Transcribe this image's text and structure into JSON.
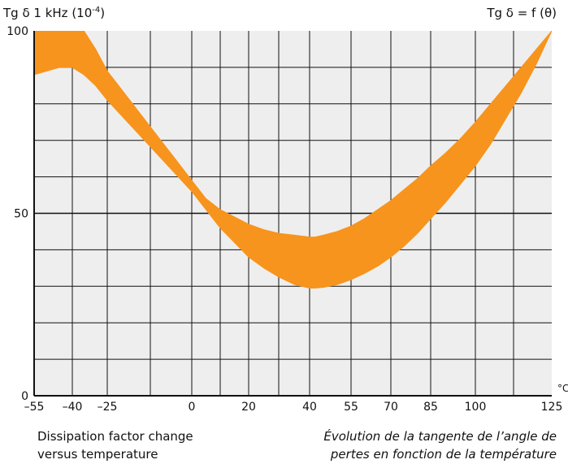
{
  "chart_data": {
    "type": "area",
    "y_title": "Tg δ 1 kHz (10",
    "y_title_exp": "-4",
    "y_title_close": ")",
    "right_title": "Tg δ = f (θ)",
    "unit": "°C",
    "grid": true,
    "ylim": [
      0,
      100
    ],
    "y_ticks": [
      0,
      50,
      100
    ],
    "x_categories": [
      "–55",
      "–40",
      "–25",
      "0",
      "20",
      "40",
      "55",
      "70",
      "85",
      "100",
      "125"
    ],
    "x_values": [
      -55,
      -40,
      -25,
      0,
      20,
      40,
      55,
      70,
      85,
      100,
      125
    ],
    "color": "#F7941D",
    "series": [
      {
        "x": [
          -55,
          -45,
          -40,
          -35,
          -30,
          -25,
          -20,
          -15,
          -10,
          -5,
          0,
          5,
          10,
          15,
          20,
          25,
          30,
          35,
          40,
          42,
          45,
          50,
          55,
          60,
          65,
          70,
          75,
          80,
          85,
          90,
          95,
          100,
          105,
          110,
          115,
          120,
          125
        ],
        "upper": [
          100,
          100,
          100,
          100,
          95,
          89,
          83,
          77,
          71,
          65,
          59,
          54,
          51,
          49,
          47,
          45.5,
          44.5,
          44,
          43.5,
          43.5,
          44,
          45,
          46.5,
          48.5,
          51,
          53.5,
          56.5,
          59.5,
          63,
          66.5,
          70.5,
          75,
          80,
          85,
          90,
          95,
          100
        ],
        "lower": [
          88,
          90,
          90,
          88,
          85,
          81,
          76,
          71,
          66,
          61,
          56,
          51,
          46,
          42,
          38,
          35,
          32.5,
          30.5,
          29.5,
          29.5,
          29.7,
          30.5,
          31.8,
          33.5,
          35.5,
          38,
          41,
          44.5,
          48.5,
          53,
          58,
          63,
          69,
          76,
          83,
          91,
          100
        ]
      }
    ],
    "caption_en": [
      "Dissipation factor change",
      "versus temperature"
    ],
    "caption_fr": [
      "Évolution de la tangente de l’angle de",
      "pertes en fonction de la température"
    ]
  }
}
